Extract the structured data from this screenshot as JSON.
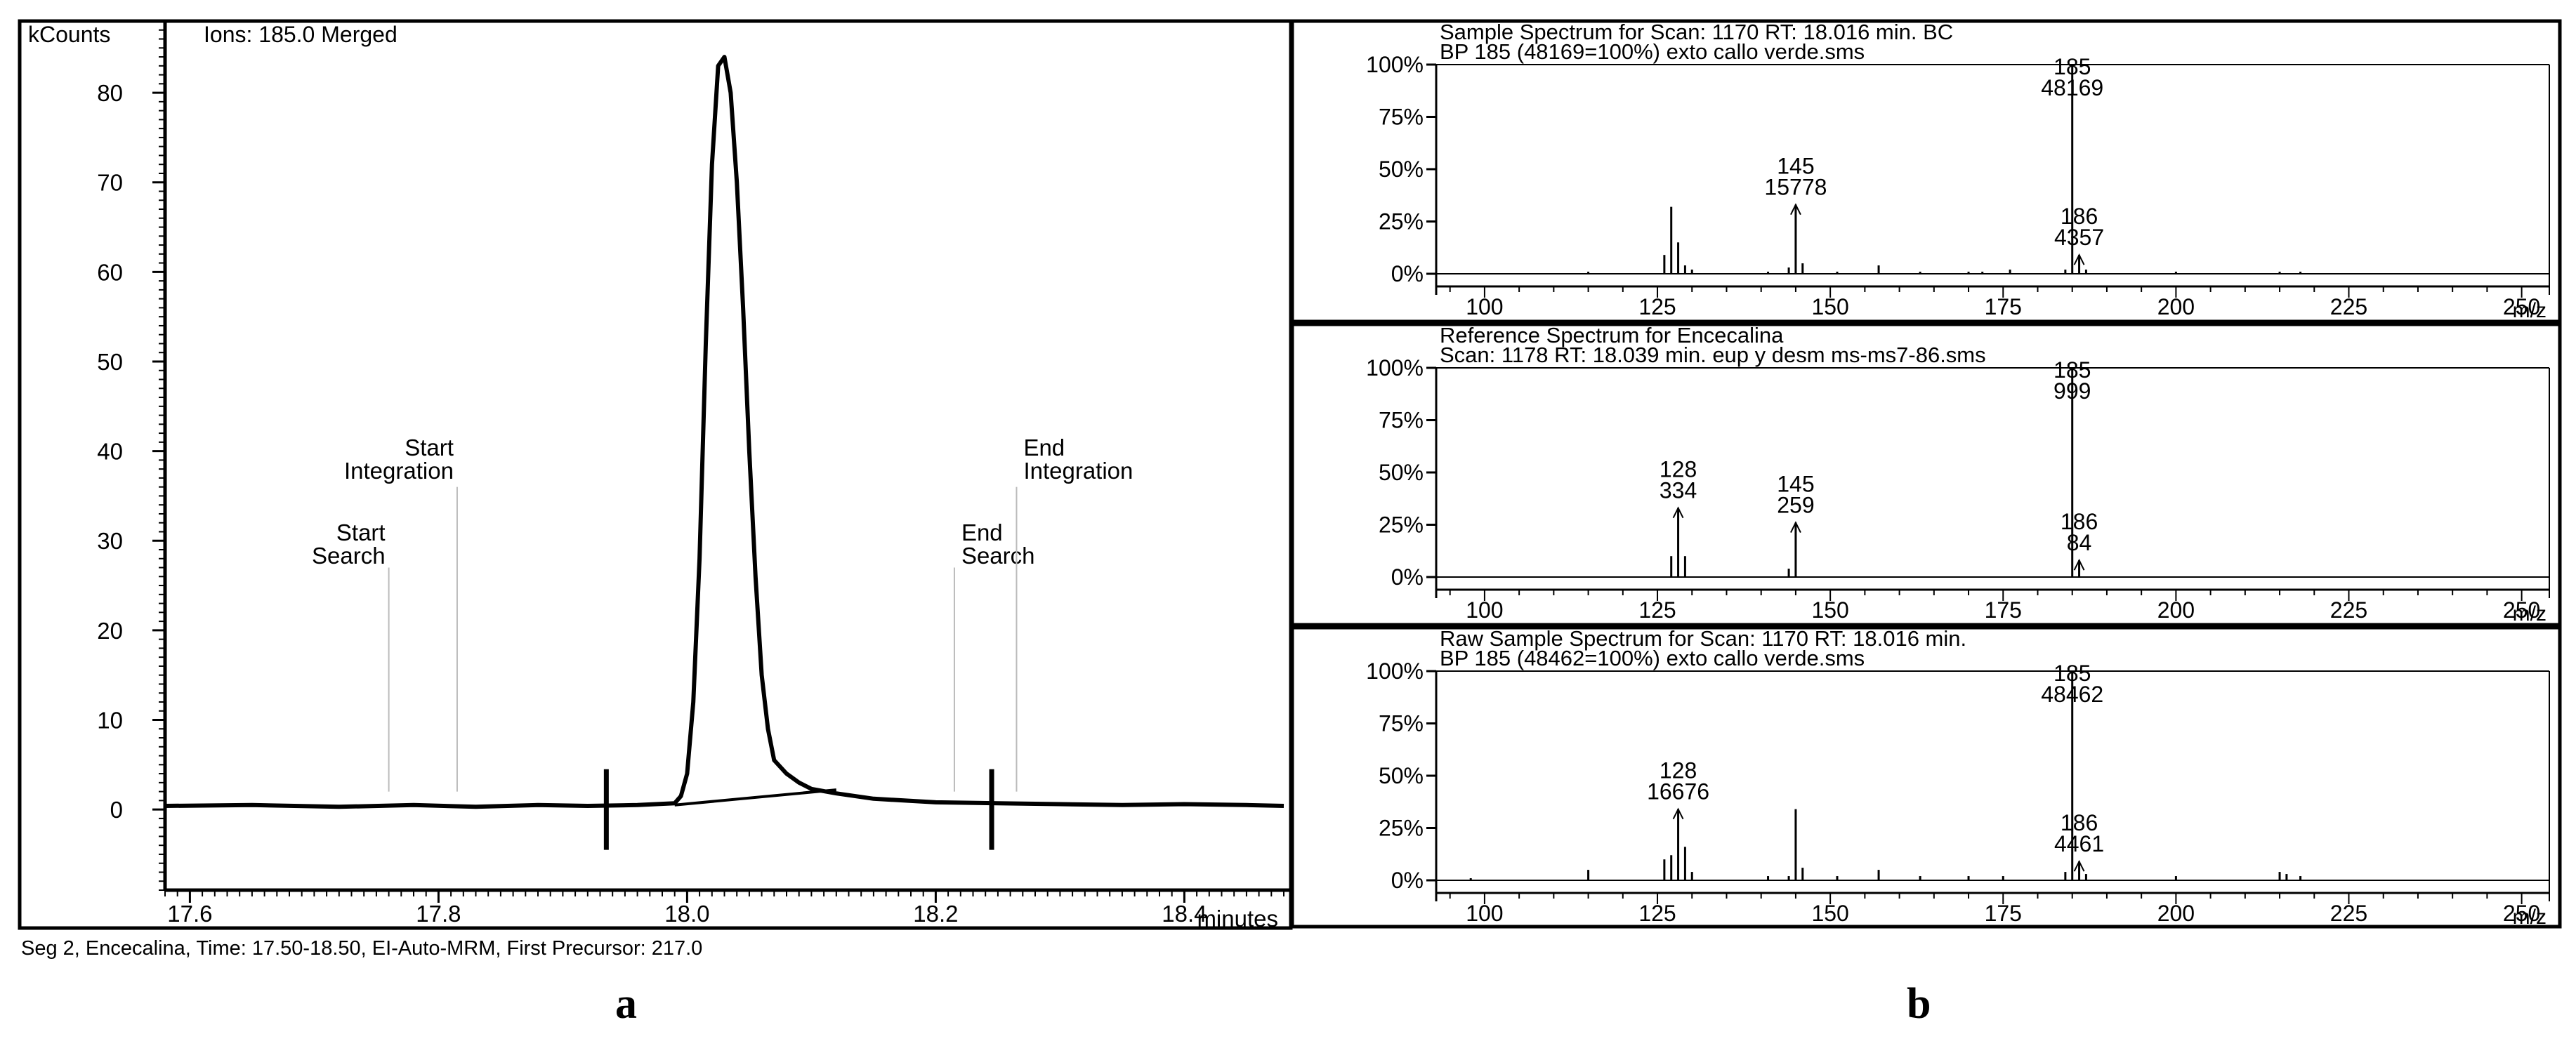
{
  "footer_caption": "Seg 2, Encecalina, Time: 17.50-18.50, EI-Auto-MRM, First Precursor:  217.0",
  "panel_labels": [
    "a",
    "b"
  ],
  "chart_data": [
    {
      "type": "line",
      "title": "Ions: 185.0 Merged",
      "ylabel": "kCounts",
      "xlabel": "minutes",
      "xlim": [
        17.58,
        18.48
      ],
      "ylim": [
        -9,
        88
      ],
      "x_ticks": [
        17.6,
        17.8,
        18.0,
        18.2,
        18.4
      ],
      "x_tick_labels": [
        "17.6",
        "17.8",
        "18.0",
        "18.2",
        "18.4"
      ],
      "y_ticks": [
        0,
        10,
        20,
        30,
        40,
        50,
        60,
        70,
        80
      ],
      "y_tick_labels": [
        "0",
        "10",
        "20",
        "30",
        "40",
        "50",
        "60",
        "70",
        "80"
      ],
      "series": [
        {
          "x": [
            17.58,
            17.65,
            17.72,
            17.78,
            17.83,
            17.88,
            17.92,
            17.96,
            17.99,
            17.995,
            18.0,
            18.005,
            18.01,
            18.015,
            18.02,
            18.025,
            18.03,
            18.035,
            18.04,
            18.045,
            18.05,
            18.055,
            18.06,
            18.065,
            18.07,
            18.08,
            18.09,
            18.1,
            18.12,
            18.15,
            18.2,
            18.25,
            18.3,
            18.35,
            18.4,
            18.45,
            18.48
          ],
          "y": [
            0.4,
            0.5,
            0.3,
            0.5,
            0.3,
            0.5,
            0.4,
            0.5,
            0.7,
            1.5,
            4,
            12,
            28,
            52,
            72,
            83,
            84,
            80,
            70,
            56,
            40,
            26,
            15,
            9,
            5.5,
            4,
            3,
            2.3,
            1.8,
            1.2,
            0.8,
            0.7,
            0.6,
            0.5,
            0.6,
            0.5,
            0.4
          ]
        }
      ],
      "baseline": {
        "x": [
          17.99,
          18.12
        ],
        "y": [
          0.5,
          2.2
        ]
      },
      "markers": [
        {
          "x": 17.76,
          "label": "Start\nSearch",
          "line_style": "thin"
        },
        {
          "x": 17.815,
          "label": "Start\nIntegration",
          "line_style": "thin"
        },
        {
          "x": 18.215,
          "label": "End\nSearch",
          "line_style": "thin"
        },
        {
          "x": 18.265,
          "label": "End\nIntegration",
          "line_style": "thin"
        },
        {
          "x": 17.935,
          "label": "",
          "line_style": "tick"
        },
        {
          "x": 18.245,
          "label": "",
          "line_style": "tick"
        }
      ]
    },
    {
      "type": "bar",
      "title": "Sample Spectrum for Scan: 1170 RT: 18.016 min. BC",
      "subtitle": "BP 185 (48169=100%) exto callo verde.sms",
      "xlabel": "m/z",
      "xlim": [
        93,
        254
      ],
      "ylim": [
        0,
        100
      ],
      "x_ticks": [
        100,
        125,
        150,
        175,
        200,
        225,
        250
      ],
      "y_tick_labels": [
        "0%",
        "25%",
        "50%",
        "75%",
        "100%"
      ],
      "x": [
        115,
        126,
        127,
        128,
        129,
        130,
        141,
        144,
        145,
        146,
        151,
        157,
        163,
        170,
        172,
        176,
        184,
        185,
        186,
        187,
        200,
        215,
        218
      ],
      "values": [
        1,
        9,
        32,
        15,
        4,
        2,
        1,
        3,
        33,
        5,
        1,
        4,
        1,
        1,
        1,
        2,
        2,
        100,
        9,
        2,
        1,
        1,
        1
      ],
      "annotations": [
        {
          "mz": "145",
          "abundance": "15778"
        },
        {
          "mz": "185",
          "abundance": "48169"
        },
        {
          "mz": "186",
          "abundance": "4357"
        }
      ]
    },
    {
      "type": "bar",
      "title": "Reference Spectrum for Encecalina",
      "subtitle": "Scan: 1178 RT: 18.039 min. eup y desm ms-ms7-86.sms",
      "xlabel": "m/z",
      "xlim": [
        93,
        254
      ],
      "ylim": [
        0,
        100
      ],
      "x_ticks": [
        100,
        125,
        150,
        175,
        200,
        225,
        250
      ],
      "y_tick_labels": [
        "0%",
        "25%",
        "50%",
        "75%",
        "100%"
      ],
      "x": [
        127,
        128,
        129,
        144,
        145,
        185,
        186
      ],
      "values": [
        10,
        33,
        10,
        4,
        26,
        100,
        8
      ],
      "annotations": [
        {
          "mz": "128",
          "abundance": "334"
        },
        {
          "mz": "145",
          "abundance": "259"
        },
        {
          "mz": "185",
          "abundance": "999"
        },
        {
          "mz": "186",
          "abundance": "84"
        }
      ]
    },
    {
      "type": "bar",
      "title": "Raw Sample Spectrum for Scan: 1170 RT: 18.016 min.",
      "subtitle": "BP 185 (48462=100%) exto callo verde.sms",
      "xlabel": "m/z",
      "xlim": [
        93,
        254
      ],
      "ylim": [
        0,
        100
      ],
      "x_ticks": [
        100,
        125,
        150,
        175,
        200,
        225,
        250
      ],
      "y_tick_labels": [
        "0%",
        "25%",
        "50%",
        "75%",
        "100%"
      ],
      "x": [
        98,
        115,
        126,
        127,
        128,
        129,
        130,
        141,
        144,
        145,
        146,
        151,
        157,
        163,
        170,
        175,
        184,
        185,
        186,
        187,
        200,
        215,
        216,
        218
      ],
      "values": [
        1,
        5,
        10,
        12,
        34,
        16,
        4,
        2,
        2,
        34,
        6,
        2,
        5,
        2,
        2,
        2,
        4,
        100,
        9,
        3,
        2,
        4,
        3,
        2
      ],
      "annotations": [
        {
          "mz": "128",
          "abundance": "16676"
        },
        {
          "mz": "185",
          "abundance": "48462"
        },
        {
          "mz": "186",
          "abundance": "4461"
        }
      ]
    }
  ]
}
